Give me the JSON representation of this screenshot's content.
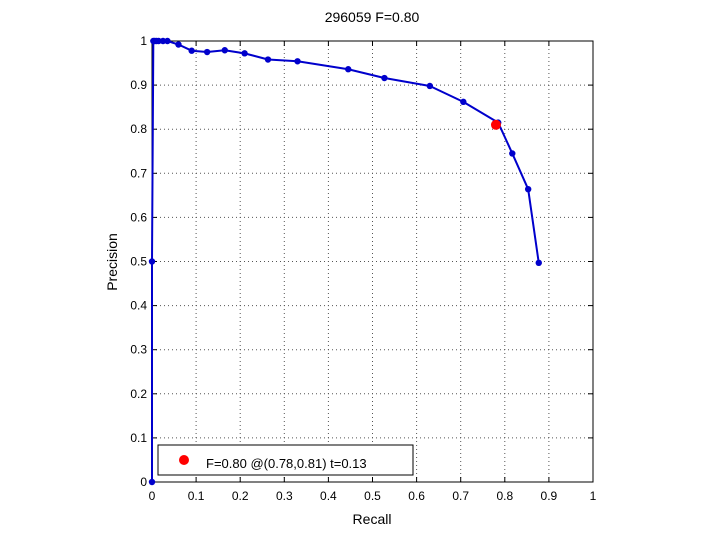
{
  "chart_data": {
    "type": "line",
    "title": "296059 F=0.80",
    "xlabel": "Recall",
    "ylabel": "Precision",
    "xlim": [
      0,
      1
    ],
    "ylim": [
      0,
      1
    ],
    "xticks": [
      "0",
      "0.1",
      "0.2",
      "0.3",
      "0.4",
      "0.5",
      "0.6",
      "0.7",
      "0.8",
      "0.9",
      "1"
    ],
    "yticks": [
      "0",
      "0.1",
      "0.2",
      "0.3",
      "0.4",
      "0.5",
      "0.6",
      "0.7",
      "0.8",
      "0.9",
      "1"
    ],
    "grid": true,
    "series": [
      {
        "color": "#0000cc",
        "points": [
          [
            0.0,
            0.0
          ],
          [
            0.0,
            0.5
          ],
          [
            0.003,
            1.0
          ],
          [
            0.006,
            1.0
          ],
          [
            0.01,
            1.0
          ],
          [
            0.015,
            1.0
          ],
          [
            0.025,
            1.0
          ],
          [
            0.035,
            1.0
          ],
          [
            0.06,
            0.992
          ],
          [
            0.09,
            0.978
          ],
          [
            0.125,
            0.975
          ],
          [
            0.165,
            0.979
          ],
          [
            0.21,
            0.972
          ],
          [
            0.263,
            0.958
          ],
          [
            0.33,
            0.954
          ],
          [
            0.445,
            0.936
          ],
          [
            0.527,
            0.916
          ],
          [
            0.63,
            0.898
          ],
          [
            0.706,
            0.862
          ],
          [
            0.785,
            0.815
          ],
          [
            0.817,
            0.745
          ],
          [
            0.853,
            0.664
          ],
          [
            0.877,
            0.497
          ]
        ]
      }
    ],
    "best_point": {
      "recall": 0.78,
      "precision": 0.81,
      "color": "#ff0000"
    },
    "legend": {
      "position": "bottom-left",
      "text": "F=0.80 @(0.78,0.81) t=0.13"
    }
  }
}
